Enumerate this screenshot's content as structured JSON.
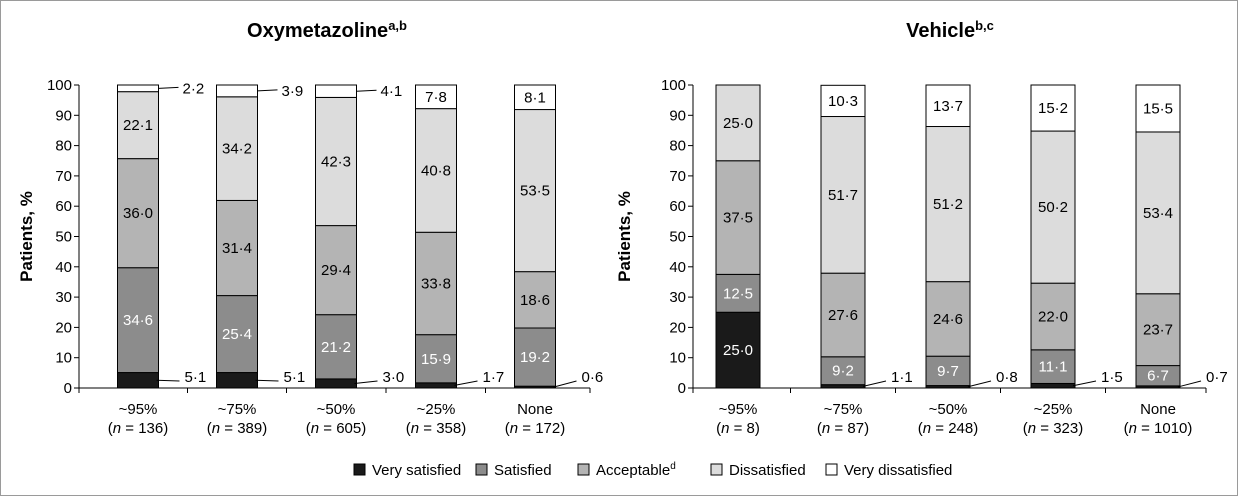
{
  "legend": {
    "items": [
      "Very satisfied",
      "Satisfied",
      "Acceptable",
      "Dissatisfied",
      "Very dissatisfied"
    ],
    "acceptable_sup": "d",
    "colors": [
      "#1a1a1a",
      "#8c8c8c",
      "#b4b4b4",
      "#dcdcdc",
      "#ffffff"
    ]
  },
  "chart_data": [
    {
      "type": "bar",
      "stacked": true,
      "title": "Oxymetazoline",
      "title_sup": "a,b",
      "ylabel": "Patients, %",
      "ylim": [
        0,
        100
      ],
      "yticks": [
        "0",
        "10",
        "20",
        "30",
        "40",
        "50",
        "60",
        "70",
        "80",
        "90",
        "100"
      ],
      "categories": [
        "~95%",
        "~75%",
        "~50%",
        "~25%",
        "None"
      ],
      "n_labels": [
        "136",
        "389",
        "605",
        "358",
        "172"
      ],
      "n_prefix": "n",
      "series": [
        {
          "name": "Very satisfied",
          "values": [
            5.1,
            5.1,
            3.0,
            1.7,
            0.6
          ],
          "labels": [
            "5·1",
            "5·1",
            "3·0",
            "1·7",
            "0·6"
          ]
        },
        {
          "name": "Satisfied",
          "values": [
            34.6,
            25.4,
            21.2,
            15.9,
            19.2
          ],
          "labels": [
            "34·6",
            "25·4",
            "21·2",
            "15·9",
            "19·2"
          ]
        },
        {
          "name": "Acceptable",
          "values": [
            36.0,
            31.4,
            29.4,
            33.8,
            18.6
          ],
          "labels": [
            "36·0",
            "31·4",
            "29·4",
            "33·8",
            "18·6"
          ]
        },
        {
          "name": "Dissatisfied",
          "values": [
            22.1,
            34.2,
            42.3,
            40.8,
            53.5
          ],
          "labels": [
            "22·1",
            "34·2",
            "42·3",
            "40·8",
            "53·5"
          ]
        },
        {
          "name": "Very dissatisfied",
          "values": [
            2.2,
            3.9,
            4.1,
            7.8,
            8.1
          ],
          "labels": [
            "2·2",
            "3·9",
            "4·1",
            "7·8",
            "8·1"
          ]
        }
      ]
    },
    {
      "type": "bar",
      "stacked": true,
      "title": "Vehicle",
      "title_sup": "b,c",
      "ylabel": "Patients, %",
      "ylim": [
        0,
        100
      ],
      "yticks": [
        "0",
        "10",
        "20",
        "30",
        "40",
        "50",
        "60",
        "70",
        "80",
        "90",
        "100"
      ],
      "categories": [
        "~95%",
        "~75%",
        "~50%",
        "~25%",
        "None"
      ],
      "n_labels": [
        "8",
        "87",
        "248",
        "323",
        "1010"
      ],
      "n_prefix": "n",
      "series": [
        {
          "name": "Very satisfied",
          "values": [
            25.0,
            1.1,
            0.8,
            1.5,
            0.7
          ],
          "labels": [
            "25·0",
            "1·1",
            "0·8",
            "1·5",
            "0·7"
          ]
        },
        {
          "name": "Satisfied",
          "values": [
            12.5,
            9.2,
            9.7,
            11.1,
            6.7
          ],
          "labels": [
            "12·5",
            "9·2",
            "9·7",
            "11·1",
            "6·7"
          ]
        },
        {
          "name": "Acceptable",
          "values": [
            37.5,
            27.6,
            24.6,
            22.0,
            23.7
          ],
          "labels": [
            "37·5",
            "27·6",
            "24·6",
            "22·0",
            "23·7"
          ]
        },
        {
          "name": "Dissatisfied",
          "values": [
            25.0,
            51.7,
            51.2,
            50.2,
            53.4
          ],
          "labels": [
            "25·0",
            "51·7",
            "51·2",
            "50·2",
            "53·4"
          ]
        },
        {
          "name": "Very dissatisfied",
          "values": [
            0,
            10.3,
            13.7,
            15.2,
            15.5
          ],
          "labels": [
            "",
            "10·3",
            "13·7",
            "15·2",
            "15·5"
          ]
        }
      ]
    }
  ]
}
